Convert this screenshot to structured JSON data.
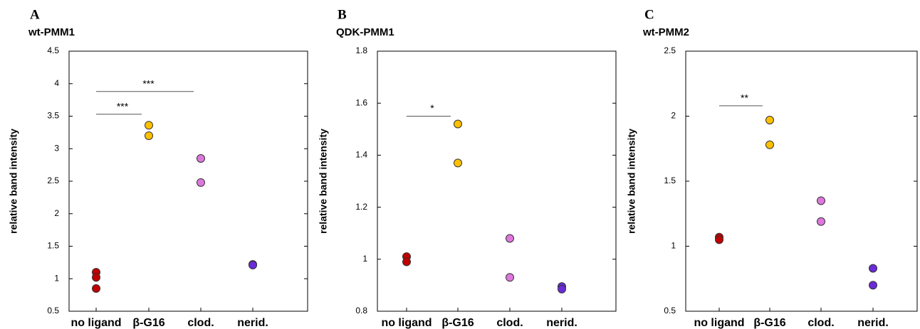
{
  "chart_data": [
    {
      "type": "scatter",
      "panel_label": "A",
      "title": "wt-PMM1",
      "ylabel": "relative band intensity",
      "categories": [
        "no ligand",
        "β-G16",
        "clod.",
        "nerid."
      ],
      "values": [
        [
          1.1,
          1.02,
          0.85
        ],
        [
          3.36,
          3.2
        ],
        [
          2.85,
          2.48
        ],
        [
          1.22,
          1.21
        ]
      ],
      "colors": [
        "#c00000",
        "#ffc000",
        "#dd77dd",
        "#6a2bd9"
      ],
      "ylim": [
        0.5,
        4.5
      ],
      "yticks": [
        0.5,
        1,
        1.5,
        2,
        2.5,
        3,
        3.5,
        4,
        4.5
      ],
      "annotations": [
        {
          "text": "***",
          "from": 0,
          "to": 2,
          "y": 3.88
        },
        {
          "text": "***",
          "from": 0,
          "to": 1,
          "y": 3.53
        }
      ]
    },
    {
      "type": "scatter",
      "panel_label": "B",
      "title": "QDK-PMM1",
      "ylabel": "relative band intensity",
      "categories": [
        "no ligand",
        "β-G16",
        "clod.",
        "nerid."
      ],
      "values": [
        [
          1.01,
          0.99
        ],
        [
          1.52,
          1.37
        ],
        [
          1.08,
          0.93
        ],
        [
          0.895,
          0.885
        ]
      ],
      "colors": [
        "#c00000",
        "#ffc000",
        "#dd77dd",
        "#6a2bd9"
      ],
      "ylim": [
        0.8,
        1.8
      ],
      "yticks": [
        0.8,
        1,
        1.2,
        1.4,
        1.6,
        1.8
      ],
      "annotations": [
        {
          "text": "*",
          "from": 0,
          "to": 1,
          "y": 1.55
        }
      ]
    },
    {
      "type": "scatter",
      "panel_label": "C",
      "title": "wt-PMM2",
      "ylabel": "relative band intensity",
      "categories": [
        "no ligand",
        "β-G16",
        "clod.",
        "nerid."
      ],
      "values": [
        [
          1.07,
          1.05
        ],
        [
          1.97,
          1.78
        ],
        [
          1.35,
          1.19
        ],
        [
          0.83,
          0.7
        ]
      ],
      "colors": [
        "#c00000",
        "#ffc000",
        "#dd77dd",
        "#6a2bd9"
      ],
      "ylim": [
        0.5,
        2.5
      ],
      "yticks": [
        0.5,
        1,
        1.5,
        2,
        2.5
      ],
      "annotations": [
        {
          "text": "**",
          "from": 0,
          "to": 1,
          "y": 2.08
        }
      ]
    }
  ]
}
